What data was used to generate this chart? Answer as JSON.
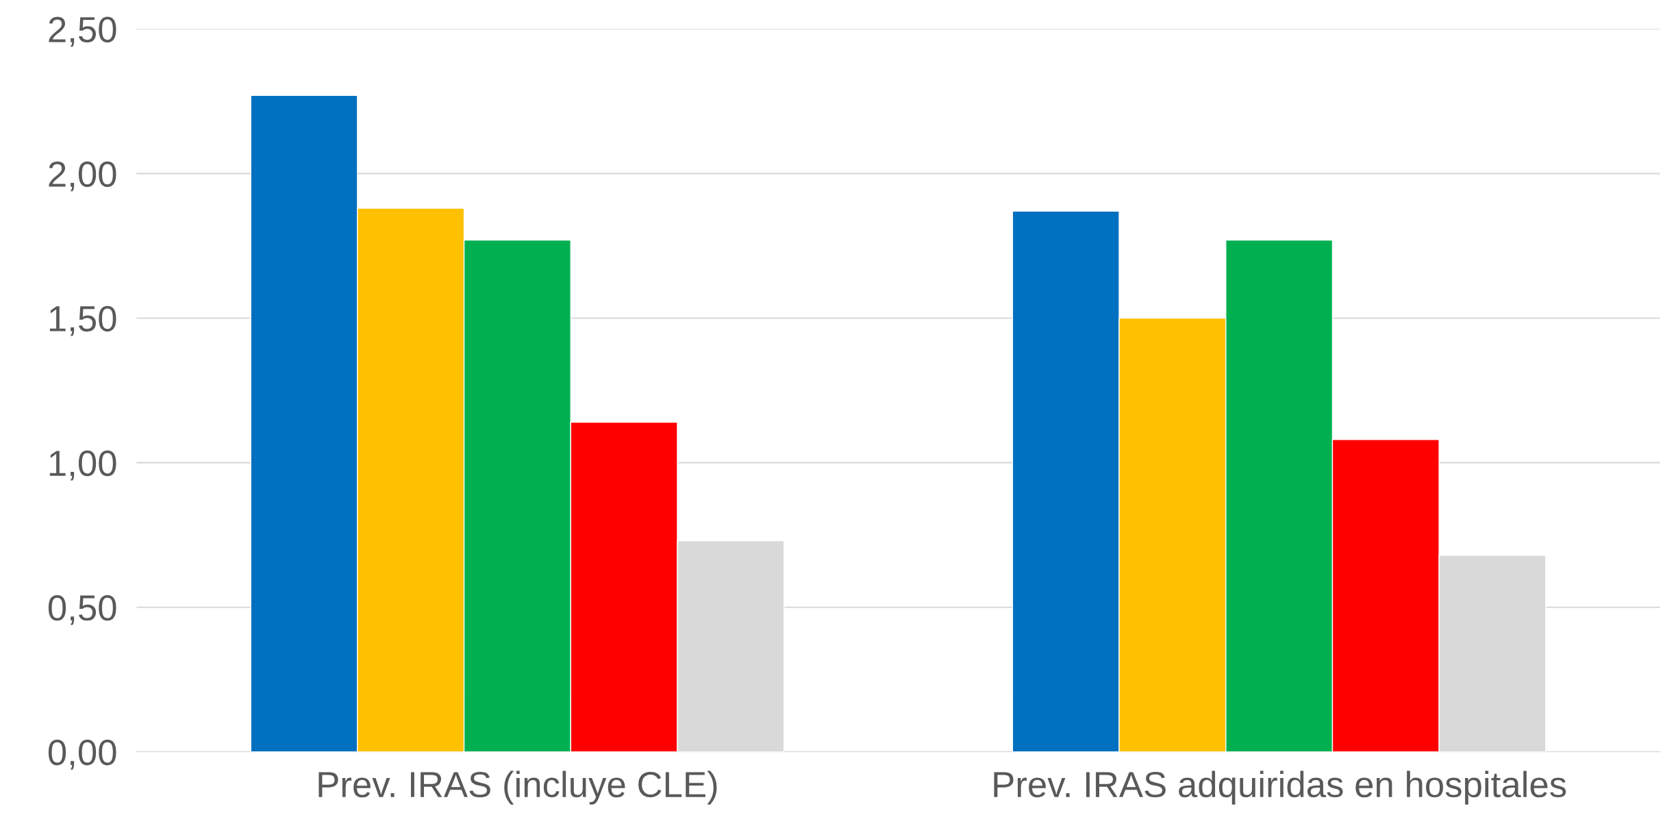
{
  "chart_data": {
    "type": "bar",
    "categories": [
      "Prev. IRAS (incluye CLE)",
      "Prev. IRAS adquiridas en hospitales"
    ],
    "series": [
      {
        "color": "#0070c0",
        "values": [
          2.27,
          1.87
        ]
      },
      {
        "color": "#ffc000",
        "values": [
          1.88,
          1.5
        ]
      },
      {
        "color": "#00b050",
        "values": [
          1.77,
          1.77
        ]
      },
      {
        "color": "#ff0000",
        "values": [
          1.14,
          1.08
        ]
      },
      {
        "color": "#d9d9d9",
        "values": [
          0.73,
          0.68
        ]
      }
    ],
    "ylim": [
      0,
      2.5
    ],
    "yticks": [
      {
        "value": 0,
        "label": "0,00"
      },
      {
        "value": 0.5,
        "label": "0,50"
      },
      {
        "value": 1,
        "label": "1,00"
      },
      {
        "value": 1.5,
        "label": "1,50"
      },
      {
        "value": 2,
        "label": "2,00"
      },
      {
        "value": 2.5,
        "label": "2,50"
      }
    ],
    "grid": "y"
  }
}
